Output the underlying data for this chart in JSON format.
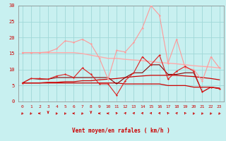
{
  "title": "",
  "xlabel": "Vent moyen/en rafales ( km/h )",
  "x": [
    0,
    1,
    2,
    3,
    4,
    5,
    6,
    7,
    8,
    9,
    10,
    11,
    12,
    13,
    14,
    15,
    16,
    17,
    18,
    19,
    20,
    21,
    22,
    23
  ],
  "background_color": "#c8f0f0",
  "grid_color": "#a0d8d8",
  "series": [
    {
      "color": "#ff9999",
      "values": [
        15.3,
        15.3,
        15.3,
        15.5,
        16.5,
        19.0,
        18.5,
        19.5,
        18.0,
        13.5,
        7.0,
        16.0,
        15.5,
        18.5,
        23.0,
        30.0,
        27.0,
        12.0,
        19.5,
        10.5,
        10.0,
        6.5,
        14.0,
        10.5
      ],
      "marker": "D",
      "markersize": 1.5,
      "linewidth": 0.8,
      "zorder": 4
    },
    {
      "color": "#ffaaaa",
      "values": [
        15.3,
        15.3,
        15.3,
        15.3,
        15.3,
        15.3,
        15.3,
        15.0,
        14.5,
        14.0,
        13.5,
        13.5,
        13.2,
        13.0,
        12.8,
        12.5,
        12.2,
        12.0,
        11.8,
        11.5,
        11.2,
        11.0,
        10.8,
        10.5
      ],
      "marker": null,
      "markersize": 0,
      "linewidth": 1.0,
      "zorder": 2
    },
    {
      "color": "#dd2222",
      "values": [
        5.8,
        7.2,
        7.2,
        7.0,
        8.0,
        8.5,
        7.5,
        10.5,
        8.5,
        5.5,
        5.5,
        2.0,
        6.5,
        9.0,
        14.0,
        11.5,
        14.5,
        7.0,
        9.5,
        11.0,
        9.5,
        3.0,
        4.5,
        4.0
      ],
      "marker": "D",
      "markersize": 1.5,
      "linewidth": 0.8,
      "zorder": 5
    },
    {
      "color": "#cc0000",
      "values": [
        5.8,
        5.8,
        5.8,
        6.0,
        6.0,
        6.2,
        6.2,
        6.5,
        6.5,
        6.8,
        7.0,
        7.2,
        7.5,
        7.8,
        8.0,
        8.2,
        8.2,
        8.2,
        8.2,
        8.0,
        7.8,
        7.5,
        7.2,
        6.8
      ],
      "marker": null,
      "markersize": 0,
      "linewidth": 0.9,
      "zorder": 3
    },
    {
      "color": "#cc0000",
      "values": [
        5.8,
        5.8,
        5.8,
        5.8,
        5.8,
        5.8,
        5.8,
        5.8,
        5.8,
        5.8,
        5.8,
        5.8,
        5.5,
        5.5,
        5.5,
        5.5,
        5.5,
        5.0,
        5.0,
        5.0,
        4.5,
        4.5,
        4.5,
        4.2
      ],
      "marker": null,
      "markersize": 0,
      "linewidth": 0.9,
      "zorder": 3
    },
    {
      "color": "#880000",
      "values": [
        5.8,
        7.2,
        7.0,
        7.0,
        7.5,
        7.5,
        7.5,
        7.5,
        7.5,
        7.5,
        7.5,
        5.5,
        7.5,
        9.0,
        9.0,
        11.5,
        11.5,
        8.5,
        8.5,
        9.0,
        9.0,
        3.0,
        4.5,
        4.0
      ],
      "marker": null,
      "markersize": 0,
      "linewidth": 0.8,
      "zorder": 3
    }
  ],
  "wind_arrows": {
    "x": [
      0,
      1,
      2,
      3,
      4,
      5,
      6,
      7,
      8,
      9,
      10,
      11,
      12,
      13,
      14,
      15,
      16,
      17,
      18,
      19,
      20,
      21,
      22,
      23
    ],
    "angles": [
      225,
      225,
      270,
      180,
      225,
      225,
      270,
      225,
      180,
      270,
      270,
      315,
      45,
      45,
      45,
      45,
      45,
      315,
      45,
      315,
      225,
      225,
      225,
      225
    ]
  },
  "ylim": [
    0,
    30
  ],
  "yticks": [
    0,
    5,
    10,
    15,
    20,
    25,
    30
  ],
  "xlim": [
    -0.5,
    23.5
  ],
  "xticks": [
    0,
    1,
    2,
    3,
    4,
    5,
    6,
    7,
    8,
    9,
    10,
    11,
    12,
    13,
    14,
    15,
    16,
    17,
    18,
    19,
    20,
    21,
    22,
    23
  ]
}
